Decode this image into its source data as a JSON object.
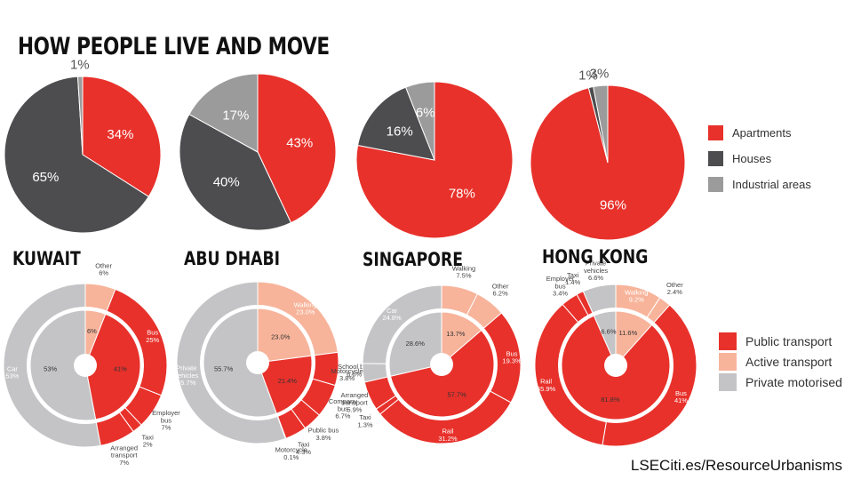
{
  "title": "HOW PEOPLE LIVE AND MOVE",
  "source": "LSECiti.es/ResourceUrbanisms",
  "colors": {
    "red": "#e8312b",
    "dark": "#4d4d4f",
    "grey": "#9b9b9b",
    "peach": "#f7b49b",
    "light": "#c4c4c6"
  },
  "housing_legend": [
    {
      "label": "Apartments",
      "color": "#e8312b"
    },
    {
      "label": "Houses",
      "color": "#4d4d4f"
    },
    {
      "label": "Industrial areas",
      "color": "#9b9b9b"
    }
  ],
  "transport_legend": [
    {
      "label": "Public transport",
      "color": "#e8312b"
    },
    {
      "label": "Active transport",
      "color": "#f7b49b"
    },
    {
      "label": "Private motorised",
      "color": "#c4c4c6"
    }
  ],
  "cities": [
    "KUWAIT",
    "ABU DHABI",
    "SINGAPORE",
    "HONG KONG"
  ],
  "chart_data": [
    {
      "type": "pie",
      "title": "KUWAIT",
      "slices": [
        {
          "label": "34%",
          "value": 34,
          "category": "Apartments",
          "color": "#e8312b"
        },
        {
          "label": "65%",
          "value": 65,
          "category": "Houses",
          "color": "#4d4d4f"
        },
        {
          "label": "1%",
          "value": 1,
          "category": "Industrial areas",
          "color": "#9b9b9b"
        }
      ]
    },
    {
      "type": "pie",
      "title": "ABU DHABI",
      "slices": [
        {
          "label": "43%",
          "value": 43,
          "category": "Apartments",
          "color": "#e8312b"
        },
        {
          "label": "40%",
          "value": 40,
          "category": "Houses",
          "color": "#4d4d4f"
        },
        {
          "label": "17%",
          "value": 17,
          "category": "Industrial areas",
          "color": "#9b9b9b"
        }
      ]
    },
    {
      "type": "pie",
      "title": "SINGAPORE",
      "slices": [
        {
          "label": "78%",
          "value": 78,
          "category": "Apartments",
          "color": "#e8312b"
        },
        {
          "label": "16%",
          "value": 16,
          "category": "Houses",
          "color": "#4d4d4f"
        },
        {
          "label": "6%",
          "value": 6,
          "category": "Industrial areas",
          "color": "#9b9b9b"
        }
      ]
    },
    {
      "type": "pie",
      "title": "HONG KONG",
      "slices": [
        {
          "label": "96%",
          "value": 96,
          "category": "Apartments",
          "color": "#e8312b"
        },
        {
          "label": "1%",
          "value": 1,
          "category": "Houses",
          "color": "#4d4d4f"
        },
        {
          "label": "3%",
          "value": 3,
          "category": "Industrial areas",
          "color": "#9b9b9b"
        }
      ]
    },
    {
      "type": "pie",
      "title": "KUWAIT",
      "inner": [
        {
          "label": "6%",
          "value": 6,
          "category": "Active transport",
          "color": "#f7b49b"
        },
        {
          "label": "41%",
          "value": 41,
          "category": "Public transport",
          "color": "#e8312b"
        },
        {
          "label": "53%",
          "value": 53,
          "category": "Private motorised",
          "color": "#c4c4c6"
        }
      ],
      "outer": [
        {
          "label": "Other\n6%",
          "value": 6,
          "color": "#f7b49b"
        },
        {
          "label": "Bus\n25%",
          "value": 25,
          "color": "#e8312b"
        },
        {
          "label": "Employer\nbus\n7%",
          "value": 7,
          "color": "#e8312b"
        },
        {
          "label": "Taxi\n2%",
          "value": 2,
          "color": "#e8312b"
        },
        {
          "label": "Arranged\ntransport\n7%",
          "value": 7,
          "color": "#e8312b"
        },
        {
          "label": "Car\n53%",
          "value": 53,
          "color": "#c4c4c6"
        }
      ]
    },
    {
      "type": "pie",
      "title": "ABU DHABI",
      "inner": [
        {
          "label": "23.0%",
          "value": 23.0,
          "category": "Active transport",
          "color": "#f7b49b"
        },
        {
          "label": "21.4%",
          "value": 21.4,
          "category": "Public transport",
          "color": "#e8312b"
        },
        {
          "label": "55.7%",
          "value": 55.7,
          "category": "Private motorised",
          "color": "#c4c4c6"
        }
      ],
      "outer": [
        {
          "label": "Walking\n23.0%",
          "value": 23.0,
          "color": "#f7b49b"
        },
        {
          "label": "School bus\n6.6%",
          "value": 6.6,
          "color": "#e8312b"
        },
        {
          "label": "Company\nbus\n6.7%",
          "value": 6.7,
          "color": "#e8312b"
        },
        {
          "label": "Public bus\n3.8%",
          "value": 3.8,
          "color": "#e8312b"
        },
        {
          "label": "Taxi\n4.3%",
          "value": 4.3,
          "color": "#e8312b"
        },
        {
          "label": "Motorcycle\n0.1%",
          "value": 0.1,
          "color": "#e8312b"
        },
        {
          "label": "Private\nvehicles\n55.7%",
          "value": 55.7,
          "color": "#c4c4c6"
        }
      ]
    },
    {
      "type": "pie",
      "title": "SINGAPORE",
      "inner": [
        {
          "label": "13.7%",
          "value": 13.7,
          "category": "Active transport",
          "color": "#f7b49b"
        },
        {
          "label": "57.7%",
          "value": 57.7,
          "category": "Public transport",
          "color": "#e8312b"
        },
        {
          "label": "28.6%",
          "value": 28.6,
          "category": "Private motorised",
          "color": "#c4c4c6"
        }
      ],
      "outer": [
        {
          "label": "Walking\n7.5%",
          "value": 7.5,
          "color": "#f7b49b"
        },
        {
          "label": "Other\n6.2%",
          "value": 6.2,
          "color": "#f7b49b"
        },
        {
          "label": "Bus\n19.3%",
          "value": 19.3,
          "color": "#e8312b"
        },
        {
          "label": "Rail\n31.2%",
          "value": 31.2,
          "color": "#e8312b"
        },
        {
          "label": "Taxi\n1.3%",
          "value": 1.3,
          "color": "#e8312b"
        },
        {
          "label": "Arranged\ntransport\n5.9%",
          "value": 5.9,
          "color": "#e8312b"
        },
        {
          "label": "Motorcycle\n3.8%",
          "value": 3.8,
          "color": "#c4c4c6"
        },
        {
          "label": "Car\n24.8%",
          "value": 24.8,
          "color": "#c4c4c6"
        }
      ]
    },
    {
      "type": "pie",
      "title": "HONG KONG",
      "inner": [
        {
          "label": "11.6%",
          "value": 11.6,
          "category": "Active transport",
          "color": "#f7b49b"
        },
        {
          "label": "81.8%",
          "value": 81.8,
          "category": "Public transport",
          "color": "#e8312b"
        },
        {
          "label": "6.6%",
          "value": 6.6,
          "category": "Private motorised",
          "color": "#c4c4c6"
        }
      ],
      "outer": [
        {
          "label": "Walking\n9.2%",
          "value": 9.2,
          "color": "#f7b49b"
        },
        {
          "label": "Other\n2.4%",
          "value": 2.4,
          "color": "#f7b49b"
        },
        {
          "label": "Bus\n41%",
          "value": 41,
          "color": "#e8312b"
        },
        {
          "label": "Rail\n35.9%",
          "value": 35.9,
          "color": "#e8312b"
        },
        {
          "label": "Employer\nbus\n3.4%",
          "value": 3.4,
          "color": "#e8312b"
        },
        {
          "label": "Taxi\n1.4%",
          "value": 1.4,
          "color": "#e8312b"
        },
        {
          "label": "Private\nvehicles\n6.6%",
          "value": 6.6,
          "color": "#c4c4c6"
        }
      ]
    }
  ]
}
